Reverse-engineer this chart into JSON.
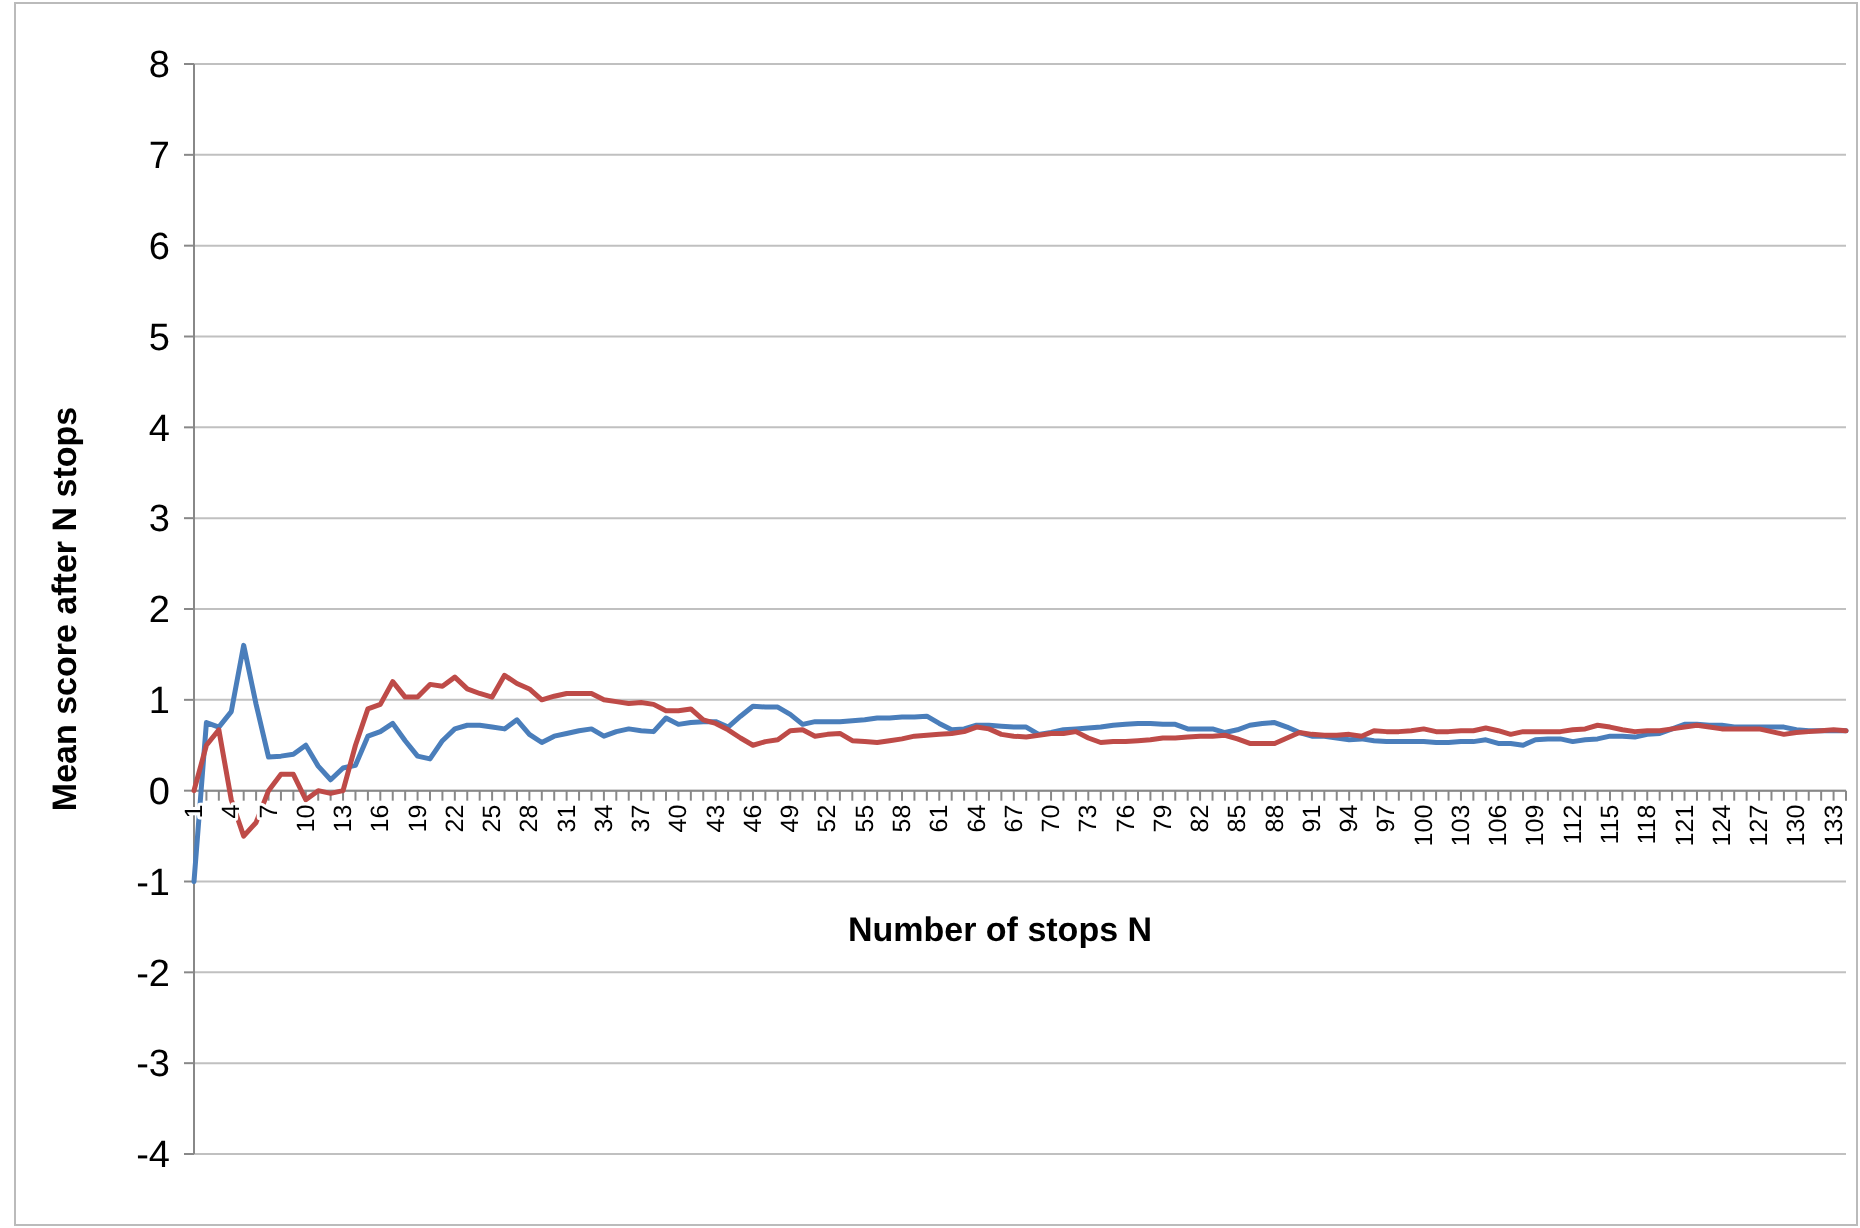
{
  "chart_data": {
    "type": "line",
    "xlabel": "Number of stops N",
    "ylabel": "Mean score after N stops",
    "categories": [
      "1",
      null,
      null,
      "4",
      null,
      null,
      "7",
      null,
      null,
      "10",
      null,
      null,
      "13",
      null,
      null,
      "16",
      null,
      null,
      "19",
      null,
      null,
      "22",
      null,
      null,
      "25",
      null,
      null,
      "28",
      null,
      null,
      "31",
      null,
      null,
      "34",
      null,
      null,
      "37",
      null,
      null,
      "40",
      null,
      null,
      "43",
      null,
      null,
      "46",
      null,
      null,
      "49",
      null,
      null,
      "52",
      null,
      null,
      "55",
      null,
      null,
      "58",
      null,
      null,
      "61",
      null,
      null,
      "64",
      null,
      null,
      "67",
      null,
      null,
      "70",
      null,
      null,
      "73",
      null,
      null,
      "76",
      null,
      null,
      "79",
      null,
      null,
      "82",
      null,
      null,
      "85",
      null,
      null,
      "88",
      null,
      null,
      "91",
      null,
      null,
      "94",
      null,
      null,
      "97",
      null,
      null,
      "100",
      null,
      null,
      "103",
      null,
      null,
      "106",
      null,
      null,
      "109",
      null,
      null,
      "112",
      null,
      null,
      "115",
      null,
      null,
      "118",
      null,
      null,
      "121",
      null,
      null,
      "124",
      null,
      null,
      "127",
      null,
      null,
      "130",
      null,
      null,
      "133",
      null
    ],
    "series": [
      {
        "color": "#4a7ebb",
        "values": [
          -1,
          0.75,
          0.7,
          0.87,
          1.6,
          0.95,
          0.37,
          0.38,
          0.4,
          0.5,
          0.27,
          0.12,
          0.25,
          0.28,
          0.6,
          0.65,
          0.74,
          0.55,
          0.38,
          0.35,
          0.55,
          0.68,
          0.72,
          0.72,
          0.7,
          0.68,
          0.78,
          0.62,
          0.53,
          0.6,
          0.63,
          0.66,
          0.68,
          0.6,
          0.65,
          0.68,
          0.66,
          0.65,
          0.8,
          0.73,
          0.75,
          0.76,
          0.76,
          0.7,
          0.82,
          0.93,
          0.92,
          0.92,
          0.84,
          0.73,
          0.76,
          0.76,
          0.76,
          0.77,
          0.78,
          0.8,
          0.8,
          0.81,
          0.81,
          0.82,
          0.74,
          0.67,
          0.68,
          0.72,
          0.72,
          0.71,
          0.7,
          0.7,
          0.62,
          0.64,
          0.67,
          0.68,
          0.69,
          0.7,
          0.72,
          0.73,
          0.74,
          0.74,
          0.73,
          0.73,
          0.68,
          0.68,
          0.68,
          0.64,
          0.67,
          0.72,
          0.74,
          0.75,
          0.7,
          0.64,
          0.6,
          0.6,
          0.58,
          0.56,
          0.57,
          0.55,
          0.54,
          0.54,
          0.54,
          0.54,
          0.53,
          0.53,
          0.54,
          0.54,
          0.56,
          0.52,
          0.52,
          0.5,
          0.56,
          0.57,
          0.57,
          0.54,
          0.56,
          0.57,
          0.6,
          0.6,
          0.59,
          0.62,
          0.63,
          0.68,
          0.73,
          0.73,
          0.72,
          0.72,
          0.7,
          0.7,
          0.7,
          0.7,
          0.7,
          0.67,
          0.66,
          0.66,
          0.66,
          0.66
        ]
      },
      {
        "color": "#be4b48",
        "values": [
          0,
          0.5,
          0.67,
          -0.1,
          -0.5,
          -0.35,
          0,
          0.18,
          0.18,
          -0.1,
          0,
          -0.03,
          0,
          0.5,
          0.9,
          0.95,
          1.2,
          1.03,
          1.03,
          1.17,
          1.15,
          1.25,
          1.12,
          1.07,
          1.03,
          1.27,
          1.18,
          1.12,
          1.0,
          1.04,
          1.07,
          1.07,
          1.07,
          1.0,
          0.98,
          0.96,
          0.97,
          0.95,
          0.88,
          0.88,
          0.9,
          0.78,
          0.74,
          0.67,
          0.58,
          0.5,
          0.54,
          0.56,
          0.66,
          0.67,
          0.6,
          0.62,
          0.63,
          0.55,
          0.54,
          0.53,
          0.55,
          0.57,
          0.6,
          0.61,
          0.62,
          0.63,
          0.65,
          0.7,
          0.68,
          0.62,
          0.6,
          0.59,
          0.61,
          0.63,
          0.63,
          0.65,
          0.58,
          0.53,
          0.54,
          0.54,
          0.55,
          0.56,
          0.58,
          0.58,
          0.59,
          0.6,
          0.6,
          0.61,
          0.57,
          0.52,
          0.52,
          0.52,
          0.58,
          0.64,
          0.62,
          0.61,
          0.61,
          0.62,
          0.6,
          0.66,
          0.65,
          0.65,
          0.66,
          0.68,
          0.65,
          0.65,
          0.66,
          0.66,
          0.69,
          0.66,
          0.62,
          0.65,
          0.65,
          0.65,
          0.65,
          0.67,
          0.68,
          0.72,
          0.7,
          0.67,
          0.65,
          0.66,
          0.66,
          0.68,
          0.7,
          0.72,
          0.7,
          0.68,
          0.68,
          0.68,
          0.68,
          0.65,
          0.62,
          0.64,
          0.65,
          0.66,
          0.67,
          0.66
        ]
      }
    ],
    "ylim": [
      -4,
      8
    ],
    "yticks": [
      -4,
      -3,
      -2,
      -1,
      0,
      1,
      2,
      3,
      4,
      5,
      6,
      7,
      8
    ],
    "grid": "y",
    "marker": "none",
    "line_style": "solid"
  }
}
